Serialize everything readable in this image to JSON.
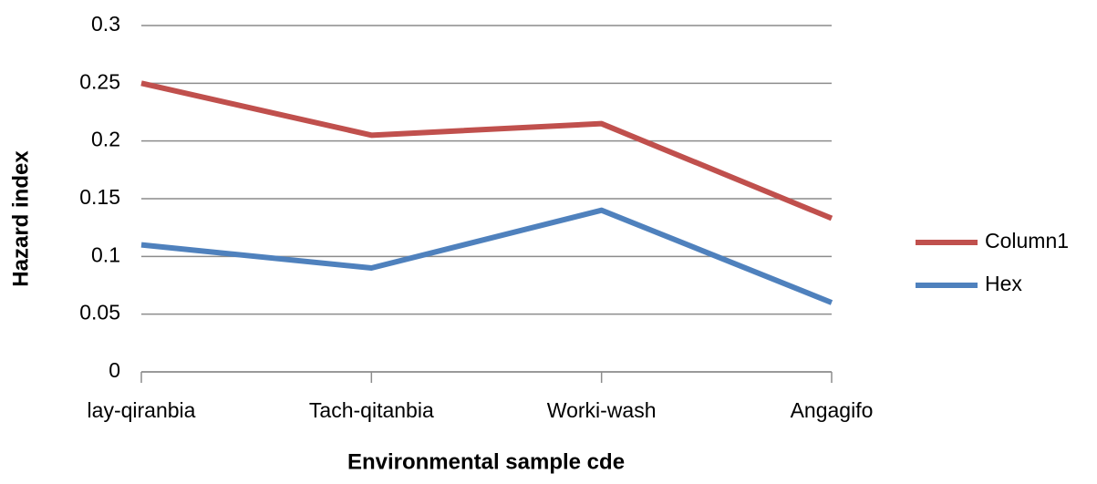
{
  "chart_data": {
    "type": "line",
    "x_label": "Environmental sample cde",
    "y_label": "Hazard index",
    "categories": [
      "lay-qiranbia",
      "Tach-qitanbia",
      "Worki-wash",
      "Angagifo"
    ],
    "series": [
      {
        "name": "Column1",
        "color": "#c0504d",
        "values": [
          0.25,
          0.205,
          0.215,
          0.133
        ]
      },
      {
        "name": "Hex",
        "color": "#4f81bd",
        "values": [
          0.11,
          0.09,
          0.14,
          0.06
        ]
      }
    ],
    "ylim": [
      0,
      0.3
    ],
    "yticks": [
      0,
      0.05,
      0.1,
      0.15,
      0.2,
      0.25,
      0.3
    ],
    "grid": true,
    "legend": "right"
  }
}
